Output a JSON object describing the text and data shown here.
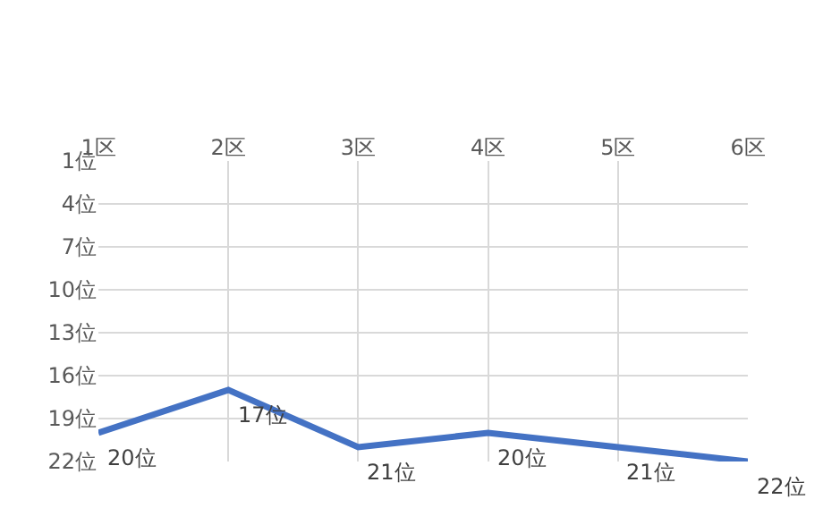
{
  "chart_data": {
    "type": "line",
    "categories": [
      "1区",
      "2区",
      "3区",
      "4区",
      "5区",
      "6区"
    ],
    "series": [
      {
        "color": "#4472c4",
        "values": [
          20,
          17,
          21,
          20,
          21,
          22
        ],
        "value_labels": [
          "20位",
          "17位",
          "21位",
          "20位",
          "21位",
          "22位"
        ]
      }
    ],
    "ylim": [
      22,
      1
    ],
    "yticks": [
      {
        "value": 1,
        "label": "1位"
      },
      {
        "value": 4,
        "label": "4位"
      },
      {
        "value": 7,
        "label": "7位"
      },
      {
        "value": 10,
        "label": "10位"
      },
      {
        "value": 13,
        "label": "13位"
      },
      {
        "value": 16,
        "label": "16位"
      },
      {
        "value": 19,
        "label": "19位"
      },
      {
        "value": 22,
        "label": "22位"
      }
    ],
    "grid": true,
    "legend": false,
    "marker": "none",
    "line_style": "solid"
  }
}
